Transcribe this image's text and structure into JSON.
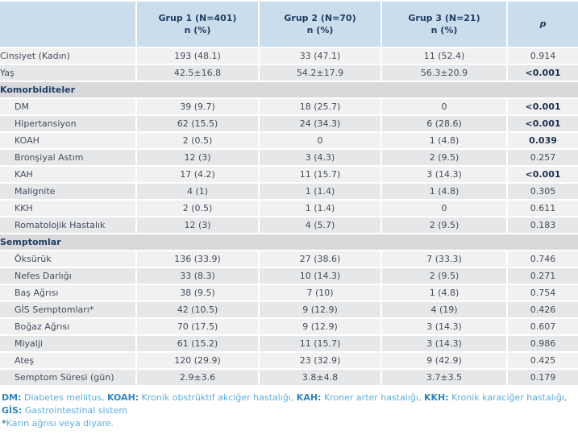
{
  "table": {
    "columns": [
      {
        "label": "",
        "sublabel": "",
        "italic": false
      },
      {
        "label": "Grup 1 (N=401)",
        "sublabel": "n (%)",
        "italic": false
      },
      {
        "label": "Grup 2 (N=70)",
        "sublabel": "n (%)",
        "italic": false
      },
      {
        "label": "Grup 3 (N=21)",
        "sublabel": "n (%)",
        "italic": false
      },
      {
        "label": "p",
        "sublabel": "",
        "italic": true
      }
    ],
    "rows": [
      {
        "type": "data",
        "label": "Cinsiyet (Kadın)",
        "sub": false,
        "values": [
          "193 (48.1)",
          "33 (47.1)",
          "11 (52.4)"
        ],
        "p": "0.914",
        "p_bold": false
      },
      {
        "type": "data",
        "label": "Yaş",
        "sub": false,
        "values": [
          "42.5±16.8",
          "54.2±17.9",
          "56.3±20.9"
        ],
        "p": "<0.001",
        "p_bold": true
      },
      {
        "type": "section",
        "label": "Komorbiditeler"
      },
      {
        "type": "data",
        "label": "DM",
        "sub": true,
        "values": [
          "39 (9.7)",
          "18 (25.7)",
          "0"
        ],
        "p": "<0.001",
        "p_bold": true
      },
      {
        "type": "data",
        "label": "Hipertansiyon",
        "sub": true,
        "values": [
          "62 (15.5)",
          "24 (34.3)",
          "6 (28.6)"
        ],
        "p": "<0.001",
        "p_bold": true
      },
      {
        "type": "data",
        "label": "KOAH",
        "sub": true,
        "values": [
          "2 (0.5)",
          "0",
          "1 (4.8)"
        ],
        "p": "0.039",
        "p_bold": true
      },
      {
        "type": "data",
        "label": "Bronşiyal Astım",
        "sub": true,
        "values": [
          "12 (3)",
          "3 (4.3)",
          "2 (9.5)"
        ],
        "p": "0.257",
        "p_bold": false
      },
      {
        "type": "data",
        "label": "KAH",
        "sub": true,
        "values": [
          "17 (4.2)",
          "11 (15.7)",
          "3 (14.3)"
        ],
        "p": "<0.001",
        "p_bold": true
      },
      {
        "type": "data",
        "label": "Malignite",
        "sub": true,
        "values": [
          "4 (1)",
          "1 (1.4)",
          "1 (4.8)"
        ],
        "p": "0.305",
        "p_bold": false
      },
      {
        "type": "data",
        "label": "KKH",
        "sub": true,
        "values": [
          "2 (0.5)",
          "1 (1.4)",
          "0"
        ],
        "p": "0.611",
        "p_bold": false
      },
      {
        "type": "data",
        "label": "Romatolojik Hastalık",
        "sub": true,
        "values": [
          "12 (3)",
          "4 (5.7)",
          "2 (9.5)"
        ],
        "p": "0.183",
        "p_bold": false
      },
      {
        "type": "section",
        "label": "Semptomlar"
      },
      {
        "type": "data",
        "label": "Öksürük",
        "sub": true,
        "values": [
          "136 (33.9)",
          "27 (38.6)",
          "7 (33.3)"
        ],
        "p": "0.746",
        "p_bold": false
      },
      {
        "type": "data",
        "label": "Nefes Darlığı",
        "sub": true,
        "values": [
          "33 (8.3)",
          "10 (14.3)",
          "2 (9.5)"
        ],
        "p": "0.271",
        "p_bold": false
      },
      {
        "type": "data",
        "label": "Baş Ağrısı",
        "sub": true,
        "values": [
          "38 (9.5)",
          "7 (10)",
          "1 (4.8)"
        ],
        "p": "0.754",
        "p_bold": false
      },
      {
        "type": "data",
        "label": "GİS Semptomları*",
        "sub": true,
        "values": [
          "42 (10.5)",
          "9 (12.9)",
          "4 (19)"
        ],
        "p": "0.426",
        "p_bold": false
      },
      {
        "type": "data",
        "label": "Boğaz Ağrısı",
        "sub": true,
        "values": [
          "70 (17.5)",
          "9 (12.9)",
          "3 (14.3)"
        ],
        "p": "0.607",
        "p_bold": false
      },
      {
        "type": "data",
        "label": "Miyalji",
        "sub": true,
        "values": [
          "61 (15.2)",
          "11 (15.7)",
          "3 (14.3)"
        ],
        "p": "0.986",
        "p_bold": false
      },
      {
        "type": "data",
        "label": "Ateş",
        "sub": true,
        "values": [
          "120 (29.9)",
          "23 (32.9)",
          "9 (42.9)"
        ],
        "p": "0.425",
        "p_bold": false
      },
      {
        "type": "data",
        "label": "Semptom Süresi (gün)",
        "sub": true,
        "values": [
          "2.9±3.6",
          "3.8±4.8",
          "3.7±3.5"
        ],
        "p": "0.179",
        "p_bold": false
      }
    ]
  },
  "footnotes": {
    "lines": [
      {
        "segments": [
          {
            "text": "DM:",
            "bold": true
          },
          {
            "text": " Diabetes mellitus, ",
            "bold": false
          },
          {
            "text": "KOAH:",
            "bold": true
          },
          {
            "text": " Kronik obstrüktif akciğer hastalığı, ",
            "bold": false
          },
          {
            "text": "KAH:",
            "bold": true
          },
          {
            "text": " Kroner arter hastalığı, ",
            "bold": false
          },
          {
            "text": "KKH:",
            "bold": true
          },
          {
            "text": " Kronik karaciğer hastalığı,",
            "bold": false
          }
        ]
      },
      {
        "segments": [
          {
            "text": "GİS:",
            "bold": true
          },
          {
            "text": " Gastrointestinal sistem",
            "bold": false
          }
        ]
      },
      {
        "segments": [
          {
            "text": "*",
            "bold": true
          },
          {
            "text": "Karın ağrısı veya diyare.",
            "bold": false
          }
        ]
      }
    ]
  },
  "colors": {
    "header_bg": "#cadded",
    "header_text": "#1f3e64",
    "section_bg": "#d9d9db",
    "row_light": "#f1f1f2",
    "row_dark": "#e6e7e9",
    "cell_text": "#424d5c",
    "bold_p_text": "#1e3150",
    "footnote_abbr": "#2e86c1",
    "footnote_text": "#5caddd"
  }
}
